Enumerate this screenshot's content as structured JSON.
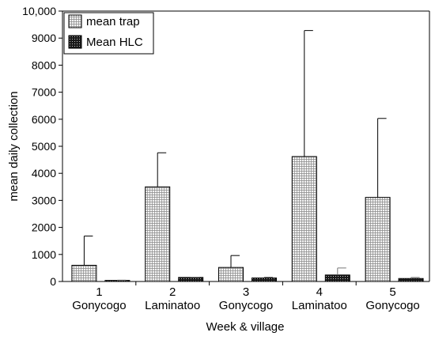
{
  "chart_data": {
    "type": "bar",
    "xlabel": "Week & village",
    "ylabel": "mean daily collection",
    "ylim": [
      0,
      10000
    ],
    "yticks": [
      "0",
      "1000",
      "2000",
      "3000",
      "4000",
      "5000",
      "6000",
      "7000",
      "8000",
      "9000",
      "10,000"
    ],
    "ytick_values": [
      0,
      1000,
      2000,
      3000,
      4000,
      5000,
      6000,
      7000,
      8000,
      9000,
      10000
    ],
    "grid": false,
    "legend_position": "top-left",
    "categories": [
      {
        "week": "1",
        "village": "Gonycogo"
      },
      {
        "week": "2",
        "village": "Laminatoo"
      },
      {
        "week": "3",
        "village": "Gonycogo"
      },
      {
        "week": "4",
        "village": "Laminatoo"
      },
      {
        "week": "5",
        "village": "Gonycogo"
      }
    ],
    "series": [
      {
        "name": "mean trap",
        "pattern": "fine-grid",
        "values": [
          600,
          3500,
          520,
          4620,
          3110
        ],
        "error_upper": [
          1680,
          4760,
          960,
          9280,
          6030
        ]
      },
      {
        "name": "Mean HLC",
        "pattern": "dark-crosshatch",
        "values": [
          40,
          150,
          130,
          240,
          110
        ],
        "error_upper": [
          50,
          160,
          160,
          500,
          150
        ]
      }
    ]
  }
}
